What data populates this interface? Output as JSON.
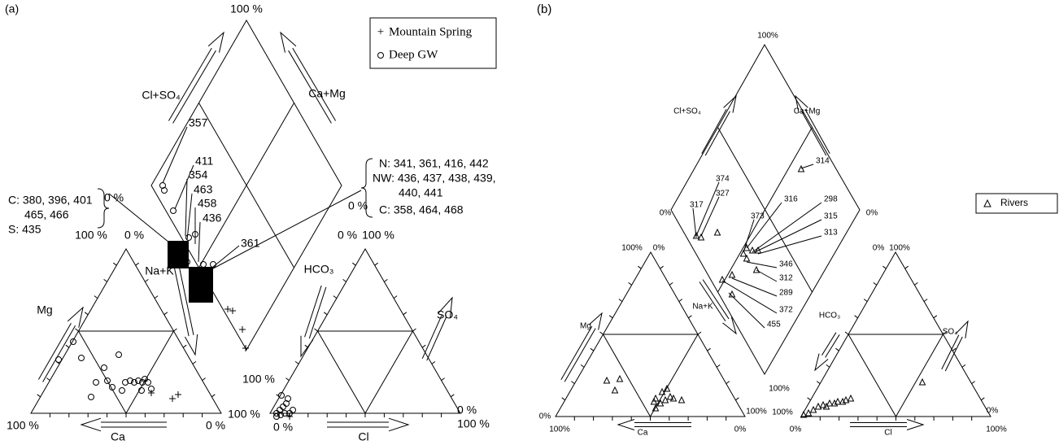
{
  "panel_a": {
    "label": "(a)",
    "legend": [
      "Mountain Spring",
      "Deep GW"
    ],
    "axis_labels": [
      "100 %",
      "Cl+SO₄",
      "Ca+Mg",
      "0 %",
      "0 %",
      "100 %",
      "0 %",
      "Na+K",
      "HCO₃",
      "0 %",
      "100 %",
      "Mg",
      "SO₄",
      "100 %",
      "100 %",
      "Ca",
      "0 %",
      "100 %",
      "0 %",
      "Cl",
      "0 %",
      "100 %"
    ],
    "sample_labels": [
      "357",
      "411",
      "354",
      "463",
      "458",
      "436",
      "361"
    ],
    "notes_left": [
      "C: 380, 396, 401",
      "465, 466",
      "S: 435"
    ],
    "notes_right": [
      "N: 341, 361, 416, 442",
      "NW: 436, 437, 438, 439,",
      "440, 441",
      "C: 358, 464, 468"
    ]
  },
  "panel_b": {
    "label": "(b)",
    "legend": [
      "Rivers"
    ],
    "axis_labels": [
      "100%",
      "Cl+SO₄",
      "Ca+Mg",
      "0%",
      "0%",
      "100%",
      "0%",
      "0%",
      "100%",
      "Mg",
      "Na+K",
      "HCO₃",
      "SO₄",
      "100%",
      "0%",
      "100%",
      "100%",
      "Ca",
      "0%",
      "100%",
      "0%",
      "Cl",
      "0%",
      "100%"
    ],
    "sample_labels": [
      "314",
      "374",
      "327",
      "317",
      "316",
      "298",
      "373",
      "315",
      "313",
      "346",
      "312",
      "289",
      "372",
      "455"
    ]
  }
}
